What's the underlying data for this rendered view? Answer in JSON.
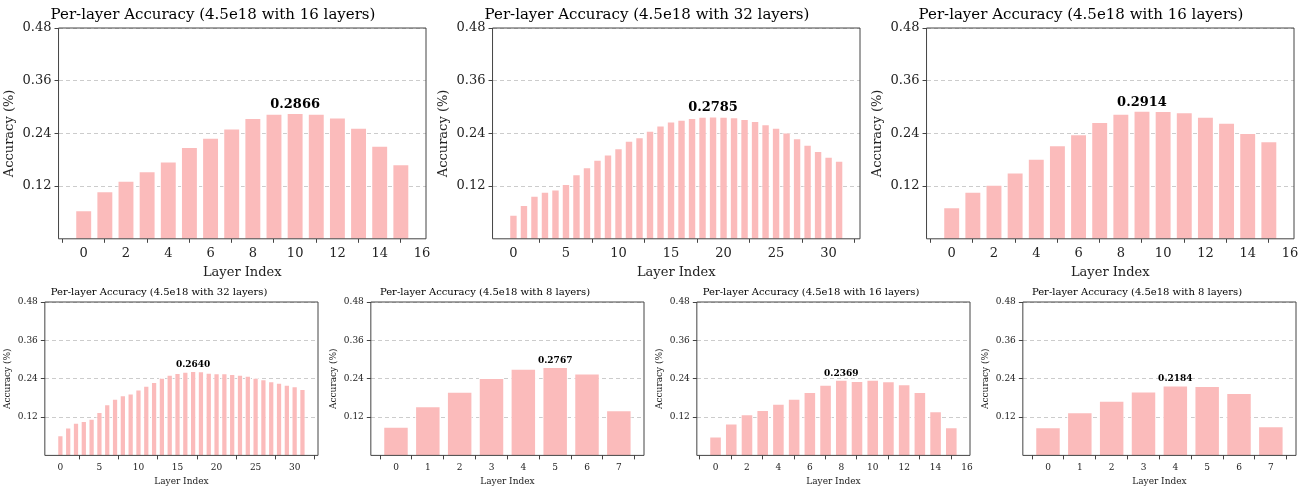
{
  "chart_data": [
    {
      "type": "bar",
      "title": "Per-layer Accuracy (4.5e18 with 16 layers)",
      "xlabel": "Layer Index",
      "ylabel": "Accuracy (%)",
      "x": [
        0,
        1,
        2,
        3,
        4,
        5,
        6,
        7,
        8,
        9,
        10,
        11,
        12,
        13,
        14,
        15
      ],
      "values": [
        0.065,
        0.108,
        0.132,
        0.154,
        0.176,
        0.209,
        0.23,
        0.251,
        0.275,
        0.285,
        0.2866,
        0.285,
        0.276,
        0.253,
        0.212,
        0.17
      ],
      "color": "#fbbbbb",
      "xlim": [
        -1.19,
        16.19
      ],
      "xticks": [
        0,
        2,
        4,
        6,
        8,
        10,
        12,
        14,
        16
      ],
      "ylim": [
        0,
        0.48
      ],
      "yticks": [
        0.12,
        0.24,
        0.36,
        0.48
      ],
      "grid": "y",
      "annotations": [
        {
          "text": "0.2866",
          "x": 10,
          "y": 0.2866
        }
      ]
    },
    {
      "type": "bar",
      "title": "Per-layer Accuracy (4.5e18 with 32 layers)",
      "xlabel": "Layer Index",
      "ylabel": "Accuracy (%)",
      "x": [
        0,
        1,
        2,
        3,
        4,
        5,
        6,
        7,
        8,
        9,
        10,
        11,
        12,
        13,
        14,
        15,
        16,
        17,
        18,
        19,
        20,
        21,
        22,
        23,
        24,
        25,
        26,
        27,
        28,
        29,
        30,
        31
      ],
      "values": [
        0.055,
        0.077,
        0.098,
        0.107,
        0.112,
        0.125,
        0.147,
        0.163,
        0.18,
        0.192,
        0.206,
        0.223,
        0.231,
        0.246,
        0.258,
        0.267,
        0.271,
        0.275,
        0.278,
        0.2785,
        0.278,
        0.277,
        0.273,
        0.268,
        0.261,
        0.253,
        0.242,
        0.229,
        0.214,
        0.2,
        0.187,
        0.178
      ],
      "color": "#fbbbbb",
      "xlim": [
        -1.99,
        32.99
      ],
      "xticks": [
        0,
        5,
        10,
        15,
        20,
        25,
        30
      ],
      "ylim": [
        0,
        0.48
      ],
      "yticks": [
        0.12,
        0.24,
        0.36,
        0.48
      ],
      "grid": "y",
      "annotations": [
        {
          "text": "0.2785",
          "x": 19,
          "y": 0.2785
        }
      ]
    },
    {
      "type": "bar",
      "title": "Per-layer Accuracy (4.5e18 with 16 layers)",
      "xlabel": "Layer Index",
      "ylabel": "Accuracy (%)",
      "x": [
        0,
        1,
        2,
        3,
        4,
        5,
        6,
        7,
        8,
        9,
        10,
        11,
        12,
        13,
        14,
        15
      ],
      "values": [
        0.072,
        0.107,
        0.123,
        0.151,
        0.182,
        0.213,
        0.238,
        0.266,
        0.285,
        0.2914,
        0.291,
        0.288,
        0.278,
        0.264,
        0.241,
        0.222
      ],
      "color": "#fbbbbb",
      "xlim": [
        -1.19,
        16.19
      ],
      "xticks": [
        0,
        2,
        4,
        6,
        8,
        10,
        12,
        14,
        16
      ],
      "ylim": [
        0,
        0.48
      ],
      "yticks": [
        0.12,
        0.24,
        0.36,
        0.48
      ],
      "grid": "y",
      "annotations": [
        {
          "text": "0.2914",
          "x": 9,
          "y": 0.2914
        }
      ]
    },
    {
      "type": "bar",
      "title": "Per-layer Accuracy (4.5e18 with 32 layers)",
      "xlabel": "Layer Index",
      "ylabel": "Accuracy (%)",
      "x": [
        0,
        1,
        2,
        3,
        4,
        5,
        6,
        7,
        8,
        9,
        10,
        11,
        12,
        13,
        14,
        15,
        16,
        17,
        18,
        19,
        20,
        21,
        22,
        23,
        24,
        25,
        26,
        27,
        28,
        29,
        30,
        31
      ],
      "values": [
        0.063,
        0.087,
        0.102,
        0.108,
        0.115,
        0.136,
        0.16,
        0.177,
        0.188,
        0.194,
        0.206,
        0.218,
        0.23,
        0.243,
        0.252,
        0.258,
        0.262,
        0.264,
        0.263,
        0.259,
        0.257,
        0.257,
        0.255,
        0.252,
        0.249,
        0.243,
        0.238,
        0.232,
        0.227,
        0.221,
        0.216,
        0.208
      ],
      "color": "#fbbbbb",
      "xlim": [
        -1.99,
        32.99
      ],
      "xticks": [
        0,
        5,
        10,
        15,
        20,
        25,
        30
      ],
      "ylim": [
        0,
        0.48
      ],
      "yticks": [
        0.12,
        0.24,
        0.36,
        0.48
      ],
      "grid": "y",
      "annotations": [
        {
          "text": "0.2640",
          "x": 17,
          "y": 0.264
        }
      ]
    },
    {
      "type": "bar",
      "title": "Per-layer Accuracy (4.5e18 with 8 layers)",
      "xlabel": "Layer Index",
      "ylabel": "Accuracy (%)",
      "x": [
        0,
        1,
        2,
        3,
        4,
        5,
        6,
        7
      ],
      "values": [
        0.09,
        0.154,
        0.199,
        0.242,
        0.271,
        0.2767,
        0.256,
        0.141
      ],
      "color": "#fbbbbb",
      "xlim": [
        -0.79,
        7.79
      ],
      "xticks": [
        0,
        1,
        2,
        3,
        4,
        5,
        6,
        7
      ],
      "ylim": [
        0,
        0.48
      ],
      "yticks": [
        0.12,
        0.24,
        0.36,
        0.48
      ],
      "grid": "y",
      "annotations": [
        {
          "text": "0.2767",
          "x": 5,
          "y": 0.2767
        }
      ]
    },
    {
      "type": "bar",
      "title": "Per-layer Accuracy (4.5e18 with 16 layers)",
      "xlabel": "Layer Index",
      "ylabel": "Accuracy (%)",
      "x": [
        0,
        1,
        2,
        3,
        4,
        5,
        6,
        7,
        8,
        9,
        10,
        11,
        12,
        13,
        14,
        15
      ],
      "values": [
        0.059,
        0.1,
        0.129,
        0.142,
        0.162,
        0.177,
        0.198,
        0.221,
        0.2369,
        0.233,
        0.237,
        0.232,
        0.223,
        0.198,
        0.138,
        0.088
      ],
      "color": "#fbbbbb",
      "xlim": [
        -1.19,
        16.19
      ],
      "xticks": [
        0,
        2,
        4,
        6,
        8,
        10,
        12,
        14,
        16
      ],
      "ylim": [
        0,
        0.48
      ],
      "yticks": [
        0.12,
        0.24,
        0.36,
        0.48
      ],
      "grid": "y",
      "annotations": [
        {
          "text": "0.2369",
          "x": 8,
          "y": 0.2369
        }
      ]
    },
    {
      "type": "bar",
      "title": "Per-layer Accuracy (4.5e18 with 8 layers)",
      "xlabel": "Layer Index",
      "ylabel": "Accuracy (%)",
      "x": [
        0,
        1,
        2,
        3,
        4,
        5,
        6,
        7
      ],
      "values": [
        0.088,
        0.135,
        0.171,
        0.2,
        0.2184,
        0.217,
        0.195,
        0.091
      ],
      "color": "#fbbbbb",
      "xlim": [
        -0.79,
        7.79
      ],
      "xticks": [
        0,
        1,
        2,
        3,
        4,
        5,
        6,
        7
      ],
      "ylim": [
        0,
        0.48
      ],
      "yticks": [
        0.12,
        0.24,
        0.36,
        0.48
      ],
      "grid": "y",
      "annotations": [
        {
          "text": "0.2184",
          "x": 4,
          "y": 0.2184
        }
      ]
    }
  ]
}
